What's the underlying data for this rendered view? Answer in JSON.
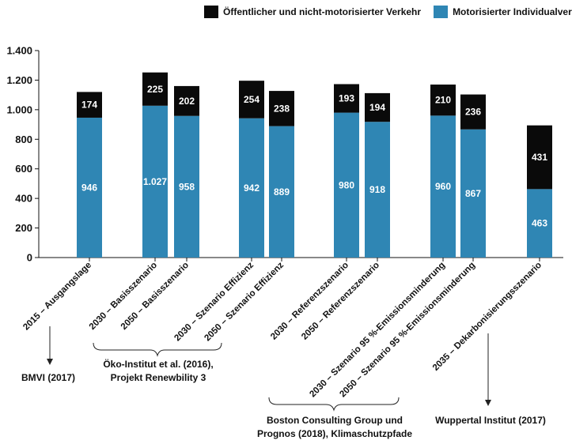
{
  "chart_data": {
    "type": "bar",
    "stacked": true,
    "categories": [
      "2015 – Ausgangslage",
      "2030 – Basisszenario",
      "2050 – Basisszenario",
      "2030 – Szenario Effizienz",
      "2050 – Szenario Effizienz",
      "2030 – Referenzszenario",
      "2050 – Referenzszenario",
      "2030 – Szenario 95 %-Emissionsminderung",
      "2050 – Szenario 95 %-Emissionsminderung",
      "2035 – Dekarbonisierungsszenario"
    ],
    "series": [
      {
        "name": "Motorisierter Individualverkehr",
        "color": "#2f86b4",
        "values": [
          946,
          1027,
          958,
          942,
          889,
          980,
          918,
          960,
          867,
          463
        ],
        "labels": [
          "946",
          "1.027",
          "958",
          "942",
          "889",
          "980",
          "918",
          "960",
          "867",
          "463"
        ]
      },
      {
        "name": "Öffentlicher und nicht-motorisierter Verkehr",
        "color": "#0a0a0a",
        "values": [
          174,
          225,
          202,
          254,
          238,
          193,
          194,
          210,
          236,
          431
        ],
        "labels": [
          "174",
          "225",
          "202",
          "254",
          "238",
          "193",
          "194",
          "210",
          "236",
          "431"
        ]
      }
    ],
    "ylim": [
      0,
      1400
    ],
    "yticks": [
      0,
      200,
      400,
      600,
      800,
      1000,
      1200,
      1400
    ],
    "ytick_labels": [
      "0",
      "200",
      "400",
      "600",
      "800",
      "1.000",
      "1.200",
      "1.400"
    ],
    "legend_position": "top-right",
    "legend_order": [
      "Öffentlicher und nicht-motorisierter Verkehr",
      "Motorisierter Individualverkehr"
    ],
    "sources": [
      "BMVI (2017)",
      "Öko-Institut et al. (2016), Projekt Renewbility 3",
      "Boston Consulting Group und Prognos (2018), Klimaschutzpfade",
      "Wuppertal Institut (2017)"
    ]
  },
  "legend": {
    "item1": "Öffentlicher und nicht-motorisierter Verkehr",
    "item2": "Motorisierter Individualverkehr"
  },
  "sources": {
    "bmvi": "BMVI (2017)",
    "oeko_line1": "Öko-Institut et al. (2016),",
    "oeko_line2": "Projekt Renewbility 3",
    "bcg_line1": "Boston Consulting Group und",
    "bcg_line2": "Prognos (2018), Klimaschutzpfade",
    "wuppertal": "Wuppertal Institut (2017)"
  }
}
